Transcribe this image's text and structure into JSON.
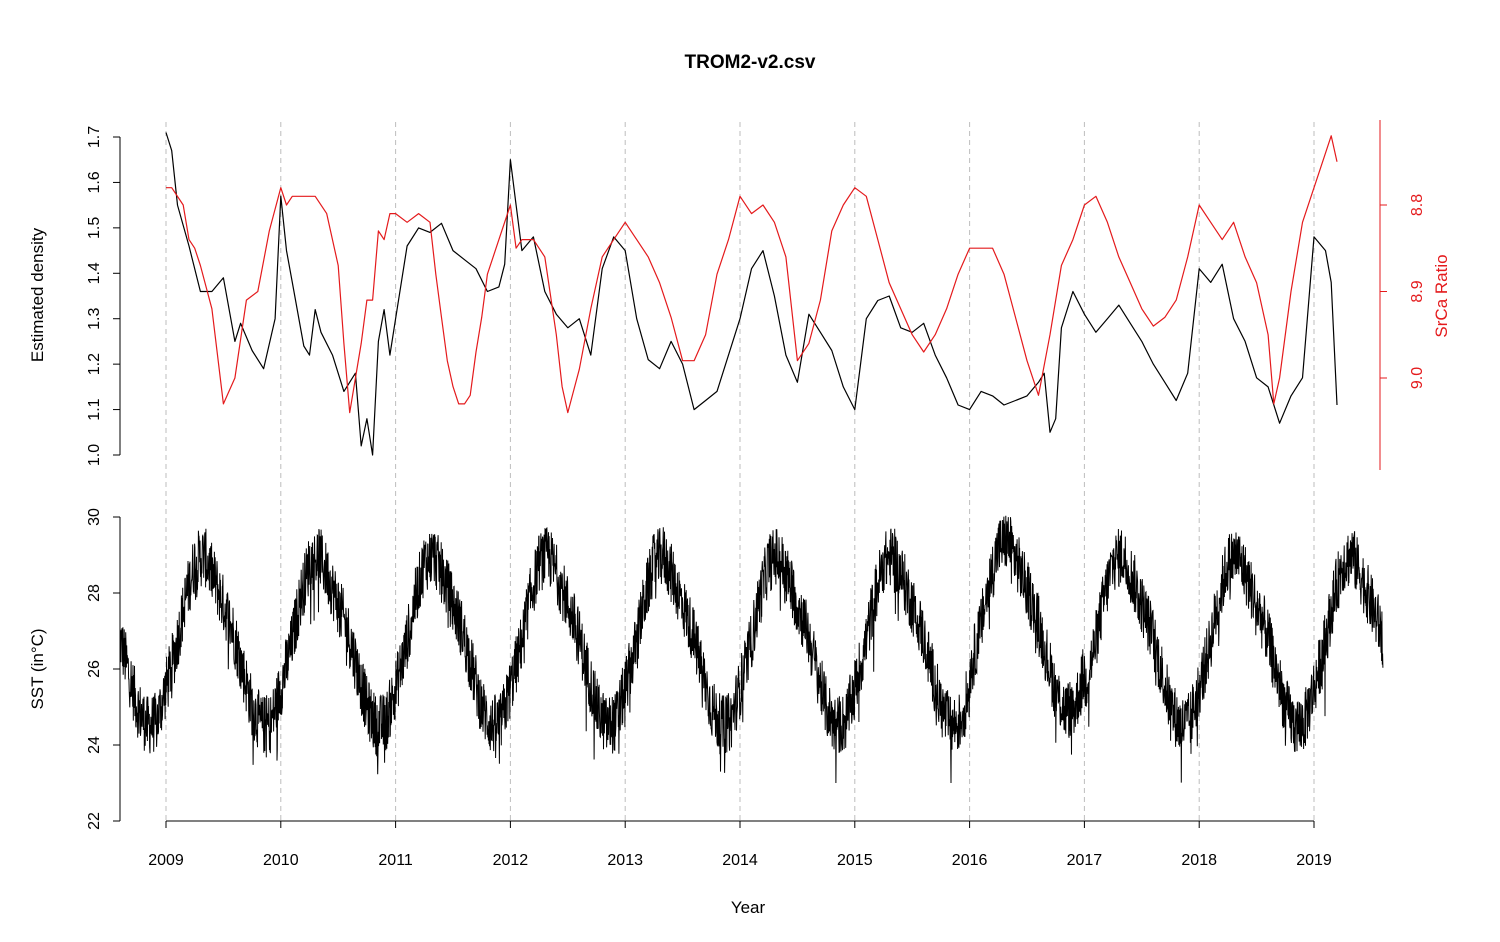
{
  "chart_data": {
    "type": "line",
    "title": "TROM2-v2.csv",
    "xlabel": "Year",
    "xlim": [
      2008.6,
      2019.6
    ],
    "x_ticks": [
      2009,
      2010,
      2011,
      2012,
      2013,
      2014,
      2015,
      2016,
      2017,
      2018,
      2019
    ],
    "x_tick_labels": [
      "2009",
      "2010",
      "2011",
      "2012",
      "2013",
      "2014",
      "2015",
      "2016",
      "2017",
      "2018",
      "2019"
    ],
    "vertical_grid": "dashed at each year",
    "panels": [
      {
        "name": "top",
        "ylabel_left": "Estimated density",
        "ylim_left": [
          1.0,
          1.7
        ],
        "y_ticks_left": [
          "1.0",
          "1.1",
          "1.2",
          "1.3",
          "1.4",
          "1.5",
          "1.6",
          "1.7"
        ],
        "ylabel_right": "SrCa Ratio",
        "ylim_right_reversed": [
          9.05,
          8.65
        ],
        "y_ticks_right": [
          "8.8",
          "8.9",
          "9.0"
        ],
        "right_axis_color": "#e41a1c",
        "series": [
          {
            "axis": "left",
            "color": "#000000",
            "x": [
              2009.0,
              2009.05,
              2009.1,
              2009.2,
              2009.3,
              2009.4,
              2009.5,
              2009.6,
              2009.65,
              2009.75,
              2009.85,
              2009.95,
              2010.0,
              2010.05,
              2010.1,
              2010.2,
              2010.25,
              2010.3,
              2010.35,
              2010.45,
              2010.55,
              2010.65,
              2010.7,
              2010.75,
              2010.8,
              2010.85,
              2010.9,
              2010.95,
              2011.0,
              2011.1,
              2011.2,
              2011.3,
              2011.4,
              2011.5,
              2011.6,
              2011.7,
              2011.8,
              2011.9,
              2011.95,
              2012.0,
              2012.05,
              2012.1,
              2012.2,
              2012.3,
              2012.4,
              2012.5,
              2012.6,
              2012.7,
              2012.8,
              2012.9,
              2013.0,
              2013.1,
              2013.2,
              2013.3,
              2013.4,
              2013.5,
              2013.6,
              2013.7,
              2013.8,
              2013.9,
              2014.0,
              2014.1,
              2014.2,
              2014.3,
              2014.4,
              2014.5,
              2014.6,
              2014.7,
              2014.8,
              2014.9,
              2015.0,
              2015.1,
              2015.2,
              2015.3,
              2015.4,
              2015.5,
              2015.6,
              2015.7,
              2015.8,
              2015.9,
              2016.0,
              2016.1,
              2016.2,
              2016.3,
              2016.4,
              2016.5,
              2016.6,
              2016.65,
              2016.7,
              2016.75,
              2016.8,
              2016.9,
              2017.0,
              2017.1,
              2017.2,
              2017.3,
              2017.4,
              2017.5,
              2017.6,
              2017.7,
              2017.8,
              2017.9,
              2018.0,
              2018.1,
              2018.2,
              2018.3,
              2018.4,
              2018.5,
              2018.6,
              2018.7,
              2018.8,
              2018.9,
              2019.0,
              2019.1,
              2019.15,
              2019.2
            ],
            "y": [
              1.71,
              1.67,
              1.55,
              1.46,
              1.36,
              1.36,
              1.39,
              1.25,
              1.29,
              1.23,
              1.19,
              1.3,
              1.57,
              1.45,
              1.38,
              1.24,
              1.22,
              1.32,
              1.27,
              1.22,
              1.14,
              1.18,
              1.02,
              1.08,
              1.0,
              1.25,
              1.32,
              1.22,
              1.3,
              1.46,
              1.5,
              1.49,
              1.51,
              1.45,
              1.43,
              1.41,
              1.36,
              1.37,
              1.42,
              1.65,
              1.55,
              1.45,
              1.48,
              1.36,
              1.31,
              1.28,
              1.3,
              1.22,
              1.41,
              1.48,
              1.45,
              1.3,
              1.21,
              1.19,
              1.25,
              1.2,
              1.1,
              1.12,
              1.14,
              1.22,
              1.3,
              1.41,
              1.45,
              1.35,
              1.22,
              1.16,
              1.31,
              1.27,
              1.23,
              1.15,
              1.1,
              1.3,
              1.34,
              1.35,
              1.28,
              1.27,
              1.29,
              1.22,
              1.17,
              1.11,
              1.1,
              1.14,
              1.13,
              1.11,
              1.12,
              1.13,
              1.16,
              1.18,
              1.05,
              1.08,
              1.28,
              1.36,
              1.31,
              1.27,
              1.3,
              1.33,
              1.29,
              1.25,
              1.2,
              1.16,
              1.12,
              1.18,
              1.41,
              1.38,
              1.42,
              1.3,
              1.25,
              1.17,
              1.15,
              1.07,
              1.13,
              1.17,
              1.48,
              1.45,
              1.38,
              1.11
            ]
          },
          {
            "axis": "right",
            "color": "#e41a1c",
            "x": [
              2009.0,
              2009.05,
              2009.15,
              2009.2,
              2009.25,
              2009.3,
              2009.4,
              2009.5,
              2009.6,
              2009.7,
              2009.8,
              2009.9,
              2010.0,
              2010.05,
              2010.1,
              2010.2,
              2010.3,
              2010.4,
              2010.5,
              2010.55,
              2010.6,
              2010.7,
              2010.75,
              2010.8,
              2010.85,
              2010.9,
              2010.95,
              2011.0,
              2011.1,
              2011.2,
              2011.3,
              2011.35,
              2011.4,
              2011.45,
              2011.5,
              2011.55,
              2011.6,
              2011.65,
              2011.7,
              2011.75,
              2011.8,
              2011.9,
              2012.0,
              2012.05,
              2012.1,
              2012.2,
              2012.3,
              2012.4,
              2012.45,
              2012.5,
              2012.6,
              2012.7,
              2012.8,
              2012.9,
              2013.0,
              2013.1,
              2013.2,
              2013.3,
              2013.4,
              2013.5,
              2013.6,
              2013.7,
              2013.8,
              2013.9,
              2014.0,
              2014.1,
              2014.2,
              2014.3,
              2014.4,
              2014.5,
              2014.6,
              2014.7,
              2014.8,
              2014.9,
              2015.0,
              2015.1,
              2015.2,
              2015.3,
              2015.4,
              2015.5,
              2015.6,
              2015.7,
              2015.8,
              2015.9,
              2016.0,
              2016.1,
              2016.2,
              2016.3,
              2016.4,
              2016.5,
              2016.6,
              2016.7,
              2016.8,
              2016.9,
              2017.0,
              2017.1,
              2017.2,
              2017.3,
              2017.4,
              2017.5,
              2017.6,
              2017.7,
              2017.8,
              2017.9,
              2018.0,
              2018.1,
              2018.2,
              2018.3,
              2018.4,
              2018.5,
              2018.6,
              2018.65,
              2018.7,
              2018.8,
              2018.9,
              2019.0,
              2019.1,
              2019.15,
              2019.2
            ],
            "y": [
              8.78,
              8.78,
              8.8,
              8.84,
              8.85,
              8.87,
              8.92,
              9.03,
              9.0,
              8.91,
              8.9,
              8.83,
              8.78,
              8.8,
              8.79,
              8.79,
              8.79,
              8.81,
              8.87,
              8.96,
              9.04,
              8.96,
              8.91,
              8.91,
              8.83,
              8.84,
              8.81,
              8.81,
              8.82,
              8.81,
              8.82,
              8.88,
              8.93,
              8.98,
              9.01,
              9.03,
              9.03,
              9.02,
              8.97,
              8.93,
              8.88,
              8.84,
              8.8,
              8.85,
              8.84,
              8.84,
              8.86,
              8.95,
              9.01,
              9.04,
              8.99,
              8.92,
              8.86,
              8.84,
              8.82,
              8.84,
              8.86,
              8.89,
              8.93,
              8.98,
              8.98,
              8.95,
              8.88,
              8.84,
              8.79,
              8.81,
              8.8,
              8.82,
              8.86,
              8.98,
              8.96,
              8.91,
              8.83,
              8.8,
              8.78,
              8.79,
              8.84,
              8.89,
              8.92,
              8.95,
              8.97,
              8.95,
              8.92,
              8.88,
              8.85,
              8.85,
              8.85,
              8.88,
              8.93,
              8.98,
              9.02,
              8.95,
              8.87,
              8.84,
              8.8,
              8.79,
              8.82,
              8.86,
              8.89,
              8.92,
              8.94,
              8.93,
              8.91,
              8.86,
              8.8,
              8.82,
              8.84,
              8.82,
              8.86,
              8.89,
              8.95,
              9.03,
              9.0,
              8.9,
              8.82,
              8.78,
              8.74,
              8.72,
              8.75
            ]
          }
        ]
      },
      {
        "name": "bottom",
        "ylabel_left": "SST (in°C)",
        "ylim_left": [
          22,
          30
        ],
        "y_ticks_left": [
          "22",
          "24",
          "26",
          "28",
          "30"
        ],
        "series": [
          {
            "axis": "left",
            "color": "#000000",
            "x_start": 2008.6,
            "x_end": 2019.6,
            "amplitude": 2.4,
            "mean": 26.8,
            "peak_phase": 0.98,
            "y_monthly_means": [
              25.5,
              26.5,
              27.8,
              28.8,
              29.0,
              28.4,
              27.7,
              27.0,
              26.0,
              25.0,
              24.5,
              24.6
            ]
          }
        ]
      }
    ]
  }
}
